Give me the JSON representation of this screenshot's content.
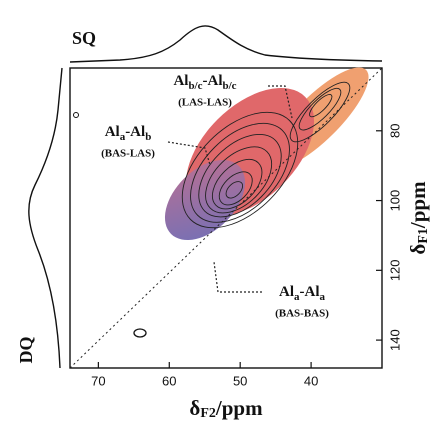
{
  "chart_data": {
    "type": "contour",
    "projection_top_label": "SQ",
    "projection_left_label": "DQ",
    "x_label": [
      "δ",
      "F2",
      "/ppm"
    ],
    "y_label": [
      "δ",
      "F1",
      "/ppm"
    ],
    "xlim": [
      74,
      30
    ],
    "xticks": [
      70,
      60,
      50,
      40
    ],
    "ylim": [
      62,
      148
    ],
    "yticks": [
      80,
      100,
      120,
      140
    ],
    "annotations": [
      {
        "parts": [
          "Al",
          "b/c",
          "-Al",
          "b/c"
        ],
        "note": "(LAS-LAS)"
      },
      {
        "parts": [
          "Al",
          "a",
          "-Al",
          "b"
        ],
        "note": "(BAS-LAS)"
      },
      {
        "parts": [
          "Al",
          "a",
          "-Al",
          "a"
        ],
        "note": "(BAS-BAS)"
      }
    ]
  }
}
